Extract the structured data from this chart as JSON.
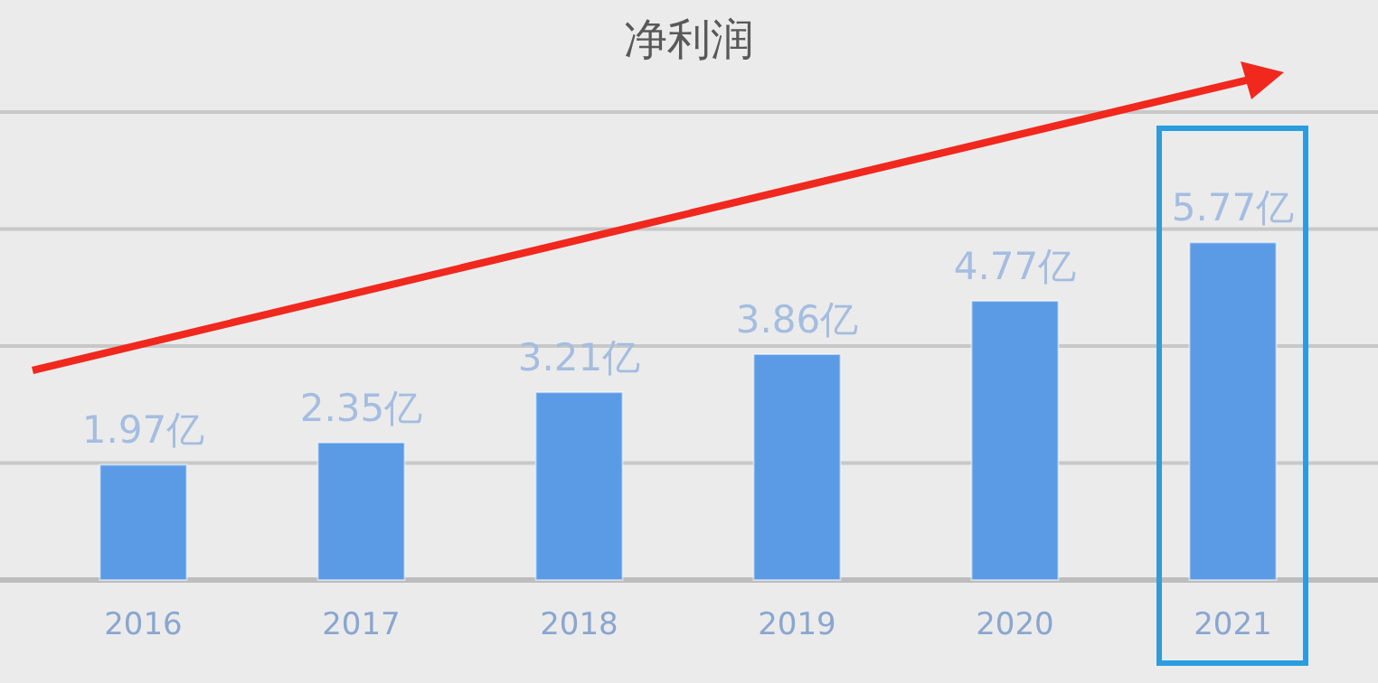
{
  "chart_data": {
    "type": "bar",
    "title": "净利润",
    "categories": [
      "2016",
      "2017",
      "2018",
      "2019",
      "2020",
      "2021"
    ],
    "values": [
      1.97,
      2.35,
      3.21,
      3.86,
      4.77,
      5.77
    ],
    "value_labels": [
      "1.97亿",
      "2.35亿",
      "3.21亿",
      "3.86亿",
      "4.77亿",
      "5.77亿"
    ],
    "color": "#5b9be6",
    "ylim": [
      0,
      8
    ],
    "yticks": [
      {
        "value": 0,
        "label": null
      },
      {
        "value": 2,
        "label": null
      },
      {
        "value": 4,
        "label": null
      },
      {
        "value": 6,
        "label": null
      },
      {
        "value": 8,
        "label": null
      }
    ],
    "tick_labels": "x",
    "grid": "y"
  }
}
